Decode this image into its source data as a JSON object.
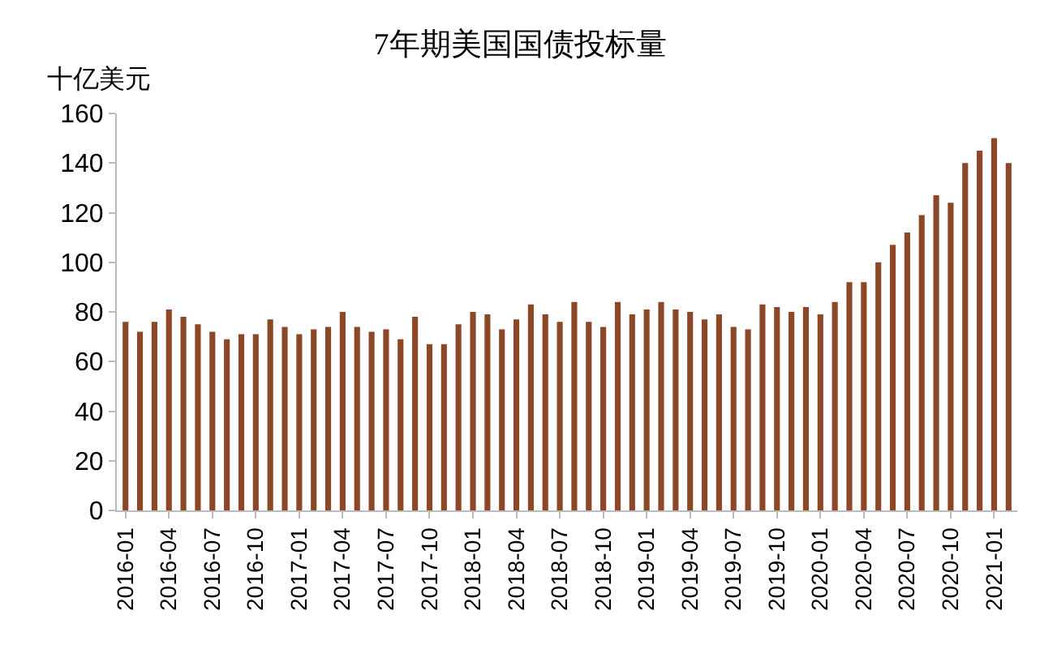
{
  "chart_data": {
    "type": "bar",
    "title": "7年期美国国债投标量",
    "ylabel": "十亿美元",
    "categories": [
      "2016-01",
      null,
      null,
      "2016-04",
      null,
      null,
      "2016-07",
      null,
      null,
      "2016-10",
      null,
      null,
      "2017-01",
      null,
      null,
      "2017-04",
      null,
      null,
      "2017-07",
      null,
      null,
      "2017-10",
      null,
      null,
      "2018-01",
      null,
      null,
      "2018-04",
      null,
      null,
      "2018-07",
      null,
      null,
      "2018-10",
      null,
      null,
      "2019-01",
      null,
      null,
      "2019-04",
      null,
      null,
      "2019-07",
      null,
      null,
      "2019-10",
      null,
      null,
      "2020-01",
      null,
      null,
      "2020-04",
      null,
      null,
      "2020-07",
      null,
      null,
      "2020-10",
      null,
      null,
      "2021-01",
      null
    ],
    "values": [
      76,
      72,
      76,
      81,
      78,
      75,
      72,
      69,
      71,
      71,
      77,
      74,
      71,
      73,
      74,
      80,
      74,
      72,
      73,
      69,
      78,
      67,
      67,
      75,
      80,
      79,
      73,
      77,
      83,
      79,
      76,
      84,
      76,
      74,
      84,
      79,
      81,
      84,
      81,
      80,
      77,
      79,
      74,
      73,
      83,
      82,
      80,
      82,
      79,
      84,
      92,
      92,
      100,
      107,
      112,
      119,
      127,
      124,
      140,
      145,
      150,
      140
    ],
    "color": "#8b4726",
    "ylim": [
      0,
      160
    ],
    "yticks": [
      0,
      20,
      40,
      60,
      80,
      100,
      120,
      140,
      160
    ],
    "grid": false
  }
}
